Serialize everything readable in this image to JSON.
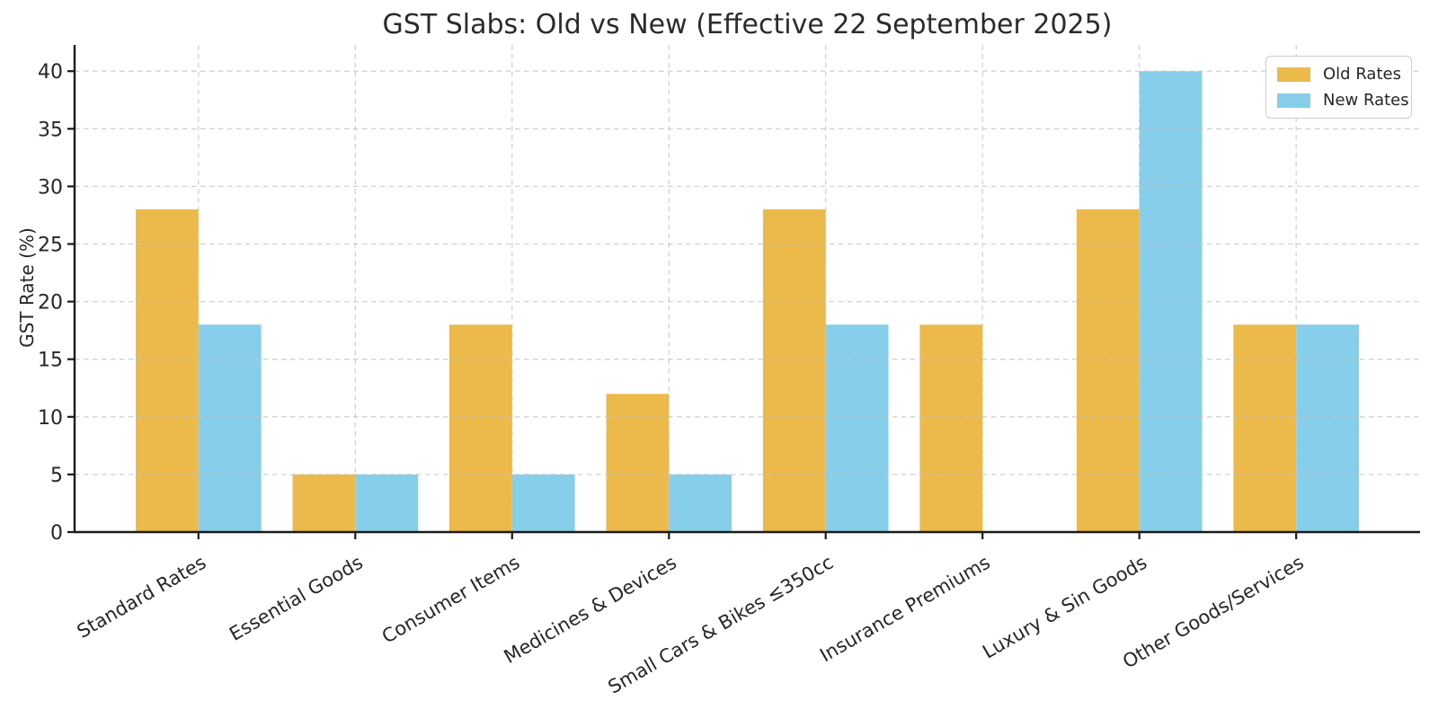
{
  "chart_data": {
    "type": "bar",
    "title": "GST Slabs: Old vs New (Effective 22 September 2025)",
    "xlabel": "",
    "ylabel": "GST Rate (%)",
    "categories": [
      "Standard Rates",
      "Essential Goods",
      "Consumer Items",
      "Medicines & Devices",
      "Small Cars & Bikes ≤350cc",
      "Insurance Premiums",
      "Luxury & Sin Goods",
      "Other Goods/Services"
    ],
    "series": [
      {
        "name": "Old Rates",
        "color": "#ECBA4B",
        "values": [
          28,
          5,
          18,
          12,
          28,
          18,
          28,
          18
        ]
      },
      {
        "name": "New Rates",
        "color": "#87CEEB",
        "values": [
          18,
          5,
          5,
          5,
          18,
          0,
          40,
          18
        ]
      }
    ],
    "yticks": [
      0,
      5,
      10,
      15,
      20,
      25,
      30,
      35,
      40
    ],
    "ylim": [
      0,
      42
    ],
    "bar_width": 0.4,
    "grid": "dashed",
    "legend_position": "upper right"
  },
  "colors": {
    "text": "#262626",
    "spine": "#1a1a1a",
    "grid": "#c4c4c4",
    "background": "#ffffff"
  }
}
